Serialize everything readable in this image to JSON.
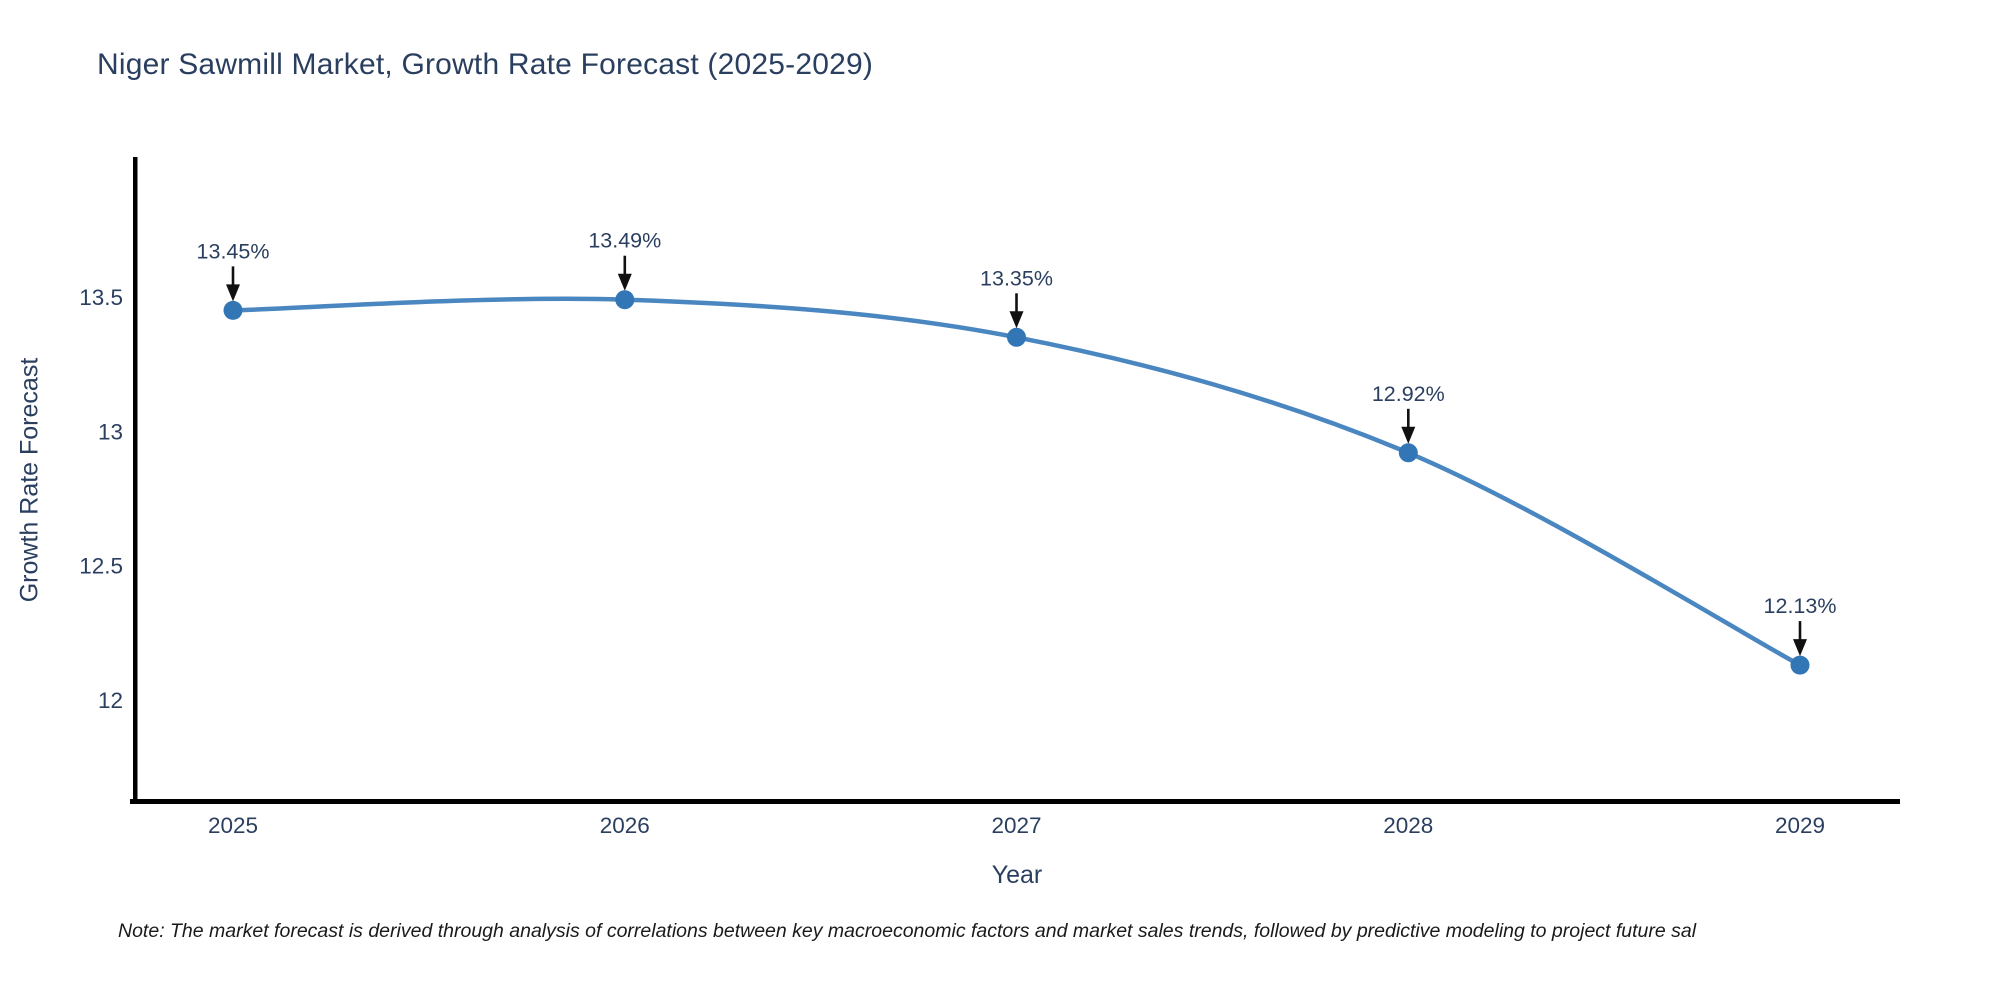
{
  "title": "Niger Sawmill Market, Growth Rate Forecast (2025-2029)",
  "note": "Note: The market forecast is derived through analysis of correlations between key macroeconomic factors and market sales trends, followed by predictive modeling to project future sal",
  "chart_data": {
    "type": "line",
    "title": "Niger Sawmill Market, Growth Rate Forecast (2025-2029)",
    "xlabel": "Year",
    "ylabel": "Growth Rate Forecast",
    "x": [
      2025,
      2026,
      2027,
      2028,
      2029
    ],
    "x_tick_labels": [
      "2025",
      "2026",
      "2027",
      "2028",
      "2029"
    ],
    "values": [
      13.45,
      13.49,
      13.35,
      12.92,
      12.13
    ],
    "point_labels": [
      "13.45%",
      "13.49%",
      "13.35%",
      "12.92%",
      "12.13%"
    ],
    "unit": "%",
    "y_ticks": [
      13.5,
      13.0,
      12.5,
      12.0
    ],
    "y_tick_labels": [
      "13.5",
      "13",
      "12.5",
      "12"
    ],
    "ylim": [
      11.6,
      14.0
    ],
    "grid": false,
    "legend": "none",
    "line_shape": "spline",
    "annotations": "value labels above each point with downward arrows",
    "colors": {
      "line": "#4a86c0",
      "marker": "#3376b5",
      "text": "#2a3f5f",
      "note_text": "#1a1a1a",
      "arrow": "#111111",
      "axis": "#000000",
      "background": "#ffffff"
    }
  }
}
